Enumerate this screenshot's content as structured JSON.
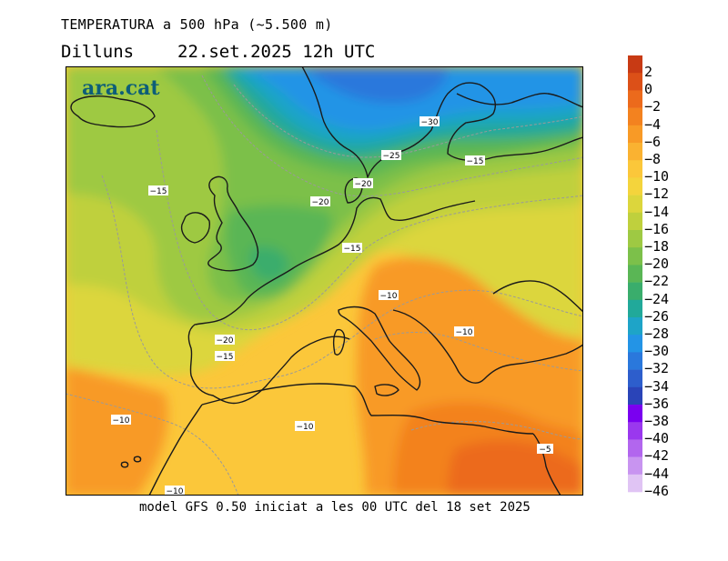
{
  "header": {
    "title": "TEMPERATURA a 500 hPa (~5.500 m)",
    "weekday": "Dilluns",
    "datetime": "22.set.2025 12h UTC"
  },
  "footer": {
    "model_info": "model GFS 0.50 iniciat a les 00 UTC del 18 set 2025"
  },
  "logo": {
    "text": "ara.cat",
    "color": "#0d5e78"
  },
  "legend": {
    "unit": "°C",
    "levels": [
      {
        "label": "2",
        "color": "#c83a14"
      },
      {
        "label": "0",
        "color": "#dc5018"
      },
      {
        "label": "−2",
        "color": "#ec6a1c"
      },
      {
        "label": "−4",
        "color": "#f3821f"
      },
      {
        "label": "−6",
        "color": "#f89a26"
      },
      {
        "label": "−8",
        "color": "#fab231"
      },
      {
        "label": "−10",
        "color": "#fbc73a"
      },
      {
        "label": "−12",
        "color": "#f4d43c"
      },
      {
        "label": "−14",
        "color": "#dcd63c"
      },
      {
        "label": "−16",
        "color": "#bfd03d"
      },
      {
        "label": "−18",
        "color": "#9ec943"
      },
      {
        "label": "−20",
        "color": "#7cc04a"
      },
      {
        "label": "−22",
        "color": "#5ab655"
      },
      {
        "label": "−24",
        "color": "#3aad6c"
      },
      {
        "label": "−26",
        "color": "#21a99a"
      },
      {
        "label": "−28",
        "color": "#1ea4c8"
      },
      {
        "label": "−30",
        "color": "#2394e6"
      },
      {
        "label": "−32",
        "color": "#2a78dc"
      },
      {
        "label": "−34",
        "color": "#2d5ecc"
      },
      {
        "label": "−36",
        "color": "#2a44b8"
      },
      {
        "label": "−38",
        "color": "#7a00f0"
      },
      {
        "label": "−40",
        "color": "#9a38ee"
      },
      {
        "label": "−42",
        "color": "#b266ee"
      },
      {
        "label": "−44",
        "color": "#c894f0"
      },
      {
        "label": "−46",
        "color": "#e0c4f4"
      }
    ]
  },
  "map": {
    "isotherm_labels": [
      "−30",
      "−25",
      "−20",
      "−15",
      "−20",
      "−15",
      "−15",
      "−10",
      "−20",
      "−15",
      "−10",
      "−10",
      "−10",
      "−5",
      "−10"
    ]
  }
}
